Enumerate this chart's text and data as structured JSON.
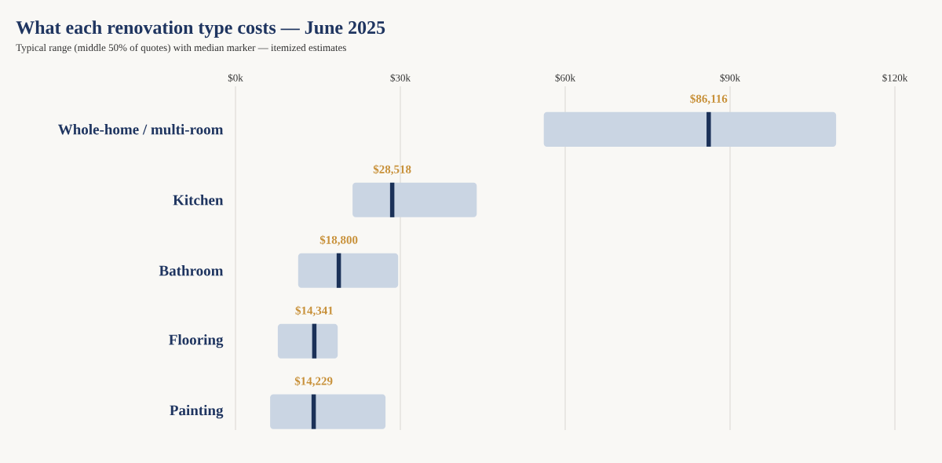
{
  "chart_data": {
    "type": "box",
    "orientation": "horizontal",
    "title": "What each renovation type costs — June 2025",
    "subtitle": "Typical range (middle 50% of quotes) with median marker — itemized estimates",
    "categories": [
      "Whole-home / multi-room",
      "Kitchen",
      "Bathroom",
      "Flooring",
      "Painting"
    ],
    "series": [
      {
        "color": "#cad5e3",
        "boxes": [
          {
            "low": 56100,
            "q1": 56100,
            "median": 86116,
            "q3": 109300,
            "high": 109300
          },
          {
            "low": 21300,
            "q1": 21300,
            "median": 28518,
            "q3": 43900,
            "high": 43900
          },
          {
            "low": 11400,
            "q1": 11400,
            "median": 18800,
            "q3": 29600,
            "high": 29600
          },
          {
            "low": 7700,
            "q1": 7700,
            "median": 14341,
            "q3": 18600,
            "high": 18600
          },
          {
            "low": 6300,
            "q1": 6300,
            "median": 14229,
            "q3": 27300,
            "high": 27300
          }
        ]
      }
    ],
    "annotations": [
      {
        "text": "$86,116",
        "x": 86116,
        "y": "Whole-home / multi-room"
      },
      {
        "text": "$28,518",
        "x": 28518,
        "y": "Kitchen"
      },
      {
        "text": "$18,800",
        "x": 18800,
        "y": "Bathroom"
      },
      {
        "text": "$14,341",
        "x": 14341,
        "y": "Flooring"
      },
      {
        "text": "$14,229",
        "x": 14229,
        "y": "Painting"
      }
    ],
    "xlim": [
      0,
      120000
    ],
    "xticks": [
      {
        "value": 0,
        "label": "$0k"
      },
      {
        "value": 30000,
        "label": "$30k"
      },
      {
        "value": 60000,
        "label": "$60k"
      },
      {
        "value": 90000,
        "label": "$90k"
      },
      {
        "value": 120000,
        "label": "$120k"
      }
    ],
    "grid": "x"
  }
}
